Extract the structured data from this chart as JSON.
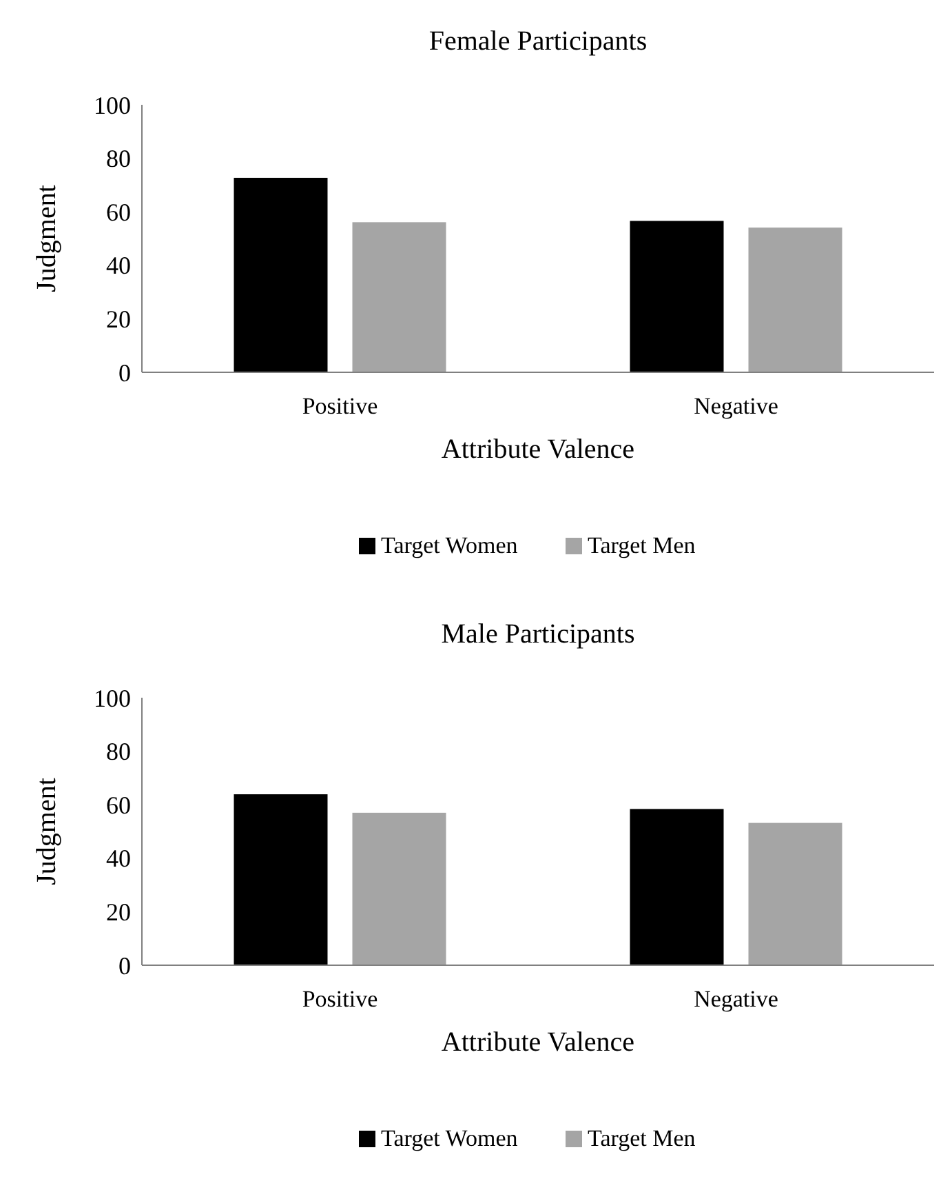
{
  "chart_data": [
    {
      "type": "bar",
      "title": "Female Participants",
      "xlabel": "Attribute Valence",
      "ylabel": "Judgment",
      "categories": [
        "Positive",
        "Negative"
      ],
      "series": [
        {
          "name": "Target Women",
          "color": "#000000",
          "values": [
            72.7,
            56.6
          ]
        },
        {
          "name": "Target Men",
          "color": "#a5a5a5",
          "values": [
            56.1,
            54.1
          ]
        }
      ],
      "ylim": [
        0,
        100
      ],
      "yticks": [
        0,
        20,
        40,
        60,
        80,
        100
      ],
      "grid": false,
      "legend": "bottom"
    },
    {
      "type": "bar",
      "title": "Male Participants",
      "xlabel": "Attribute Valence",
      "ylabel": "Judgment",
      "categories": [
        "Positive",
        "Negative"
      ],
      "series": [
        {
          "name": "Target Women",
          "color": "#000000",
          "values": [
            63.9,
            58.4
          ]
        },
        {
          "name": "Target Men",
          "color": "#a5a5a5",
          "values": [
            57,
            53.2
          ]
        }
      ],
      "ylim": [
        0,
        100
      ],
      "yticks": [
        0,
        20,
        40,
        60,
        80,
        100
      ],
      "grid": false,
      "legend": "bottom"
    }
  ]
}
